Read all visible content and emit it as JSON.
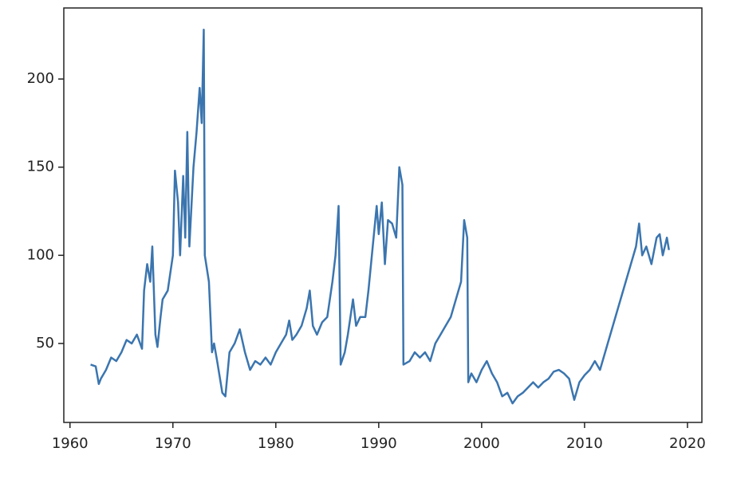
{
  "chart_data": {
    "type": "line",
    "x": [
      1962,
      1962.5,
      1962.8,
      1963,
      1963.5,
      1964,
      1964.5,
      1965,
      1965.5,
      1966,
      1966.5,
      1967,
      1967.2,
      1967.5,
      1967.8,
      1968,
      1968.3,
      1968.5,
      1968.8,
      1969,
      1969.5,
      1970,
      1970.2,
      1970.5,
      1970.7,
      1971,
      1971.2,
      1971.4,
      1971.6,
      1972,
      1972.3,
      1972.6,
      1972.8,
      1973,
      1973.1,
      1973.5,
      1973.8,
      1974,
      1974.3,
      1974.8,
      1975.1,
      1975.5,
      1976,
      1976.5,
      1977,
      1977.5,
      1978,
      1978.5,
      1979,
      1979.5,
      1980,
      1980.5,
      1981,
      1981.3,
      1981.6,
      1982,
      1982.5,
      1983,
      1983.3,
      1983.6,
      1984,
      1984.5,
      1985,
      1985.5,
      1985.8,
      1986.1,
      1986.3,
      1986.7,
      1987,
      1987.5,
      1987.8,
      1988.2,
      1988.7,
      1989,
      1989.5,
      1989.8,
      1990,
      1990.3,
      1990.6,
      1990.9,
      1991.3,
      1991.7,
      1992,
      1992.3,
      1992.4,
      1993,
      1993.5,
      1994,
      1994.5,
      1995,
      1995.5,
      1996,
      1996.5,
      1997,
      1997.5,
      1998,
      1998.3,
      1998.6,
      1998.7,
      1999,
      1999.5,
      2000,
      2000.5,
      2001,
      2001.5,
      2002,
      2002.5,
      2003,
      2003.5,
      2004,
      2004.5,
      2005,
      2005.5,
      2006,
      2006.5,
      2007,
      2007.5,
      2008,
      2008.5,
      2009,
      2009.5,
      2010,
      2010.5,
      2011,
      2011.5,
      2012,
      2012.5,
      2013,
      2013.5,
      2014,
      2014.5,
      2015,
      2015.3,
      2015.6,
      2016,
      2016.5,
      2017,
      2017.3,
      2017.6,
      2018,
      2018.2
    ],
    "values": [
      38,
      37,
      27,
      30,
      35,
      42,
      40,
      45,
      52,
      50,
      55,
      47,
      80,
      95,
      85,
      105,
      55,
      48,
      65,
      75,
      80,
      100,
      148,
      130,
      100,
      145,
      110,
      170,
      105,
      150,
      170,
      195,
      175,
      228,
      100,
      85,
      45,
      50,
      40,
      22,
      20,
      45,
      50,
      58,
      45,
      35,
      40,
      38,
      42,
      38,
      45,
      50,
      55,
      63,
      52,
      55,
      60,
      70,
      80,
      60,
      55,
      62,
      65,
      85,
      100,
      128,
      38,
      45,
      55,
      75,
      60,
      65,
      65,
      80,
      110,
      128,
      112,
      130,
      95,
      120,
      118,
      110,
      150,
      140,
      38,
      40,
      45,
      42,
      45,
      40,
      50,
      55,
      60,
      65,
      75,
      85,
      120,
      110,
      28,
      33,
      28,
      35,
      40,
      33,
      28,
      20,
      22,
      16,
      20,
      22,
      25,
      28,
      25,
      28,
      30,
      34,
      35,
      33,
      30,
      18,
      28,
      32,
      35,
      40,
      35,
      45,
      55,
      65,
      75,
      85,
      95,
      105,
      118,
      100,
      105,
      95,
      110,
      112,
      100,
      110,
      103
    ],
    "color": "#3b75af",
    "xlim": [
      1959.4,
      2021.4
    ],
    "xticks": [
      1960,
      1970,
      1980,
      1990,
      2000,
      2010,
      2020
    ],
    "ylim": [
      5.2,
      240.3
    ],
    "yticks": [
      50,
      100,
      150,
      200
    ]
  }
}
